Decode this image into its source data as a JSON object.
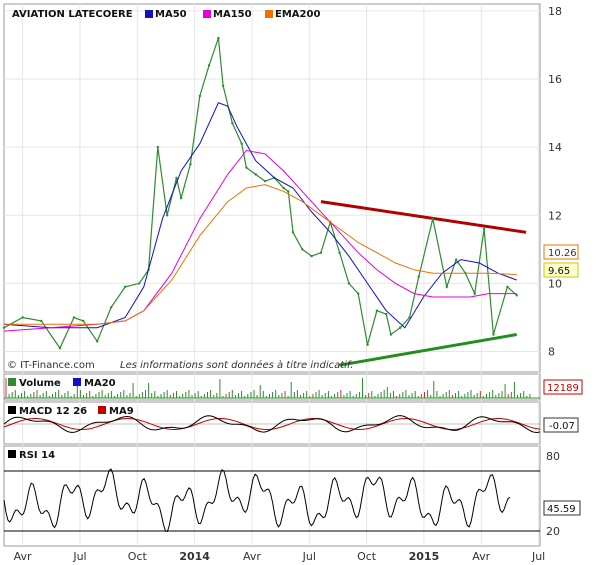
{
  "chart_data": {
    "type": "line",
    "title": "AVIATION LATECOERE",
    "legend": [
      {
        "name": "MA50",
        "color": "#1010c8"
      },
      {
        "name": "MA150",
        "color": "#e000e0"
      },
      {
        "name": "EMA200",
        "color": "#f07000"
      }
    ],
    "x_tick_labels": [
      "Avr",
      "Jul",
      "Oct",
      "2014",
      "Avr",
      "Jul",
      "Oct",
      "2015",
      "Avr",
      "Jul"
    ],
    "y_ticks": [
      "18",
      "16",
      "14",
      "12",
      "10",
      "8"
    ],
    "ylim": [
      7.4,
      18.2
    ],
    "grid": true,
    "last_price": "9.65",
    "ema200_value": "10.26",
    "price_color": "#2e8b2e",
    "series": [
      {
        "name": "Price",
        "color": "#2e8b2e",
        "x": [
          0,
          4,
          8,
          12,
          15,
          17,
          20,
          23,
          26,
          29,
          31,
          33,
          35,
          37,
          38,
          40,
          42,
          44,
          46,
          47,
          49,
          51,
          52,
          54,
          56,
          58,
          60,
          61,
          62,
          64,
          66,
          68,
          70,
          72,
          74,
          76,
          78,
          80,
          82,
          83,
          85,
          87,
          89,
          92,
          95,
          97,
          99,
          101,
          103,
          105,
          108,
          110
        ],
        "values": [
          8.7,
          9.0,
          8.9,
          8.1,
          9.0,
          8.9,
          8.3,
          9.3,
          9.9,
          10.0,
          10.4,
          14.0,
          12.0,
          13.1,
          12.5,
          13.5,
          15.5,
          16.4,
          17.2,
          15.8,
          14.7,
          14.1,
          13.4,
          13.2,
          13.0,
          13.1,
          12.8,
          12.7,
          11.5,
          11.0,
          10.8,
          10.9,
          11.8,
          10.9,
          10.0,
          9.7,
          8.2,
          9.2,
          9.1,
          8.5,
          8.7,
          9.0,
          10.2,
          11.9,
          9.9,
          10.7,
          10.3,
          9.7,
          11.6,
          8.5,
          9.9,
          9.65
        ]
      },
      {
        "name": "MA50",
        "color": "#1010c8",
        "x": [
          0,
          10,
          20,
          26,
          30,
          34,
          38,
          42,
          46,
          48,
          50,
          54,
          58,
          62,
          66,
          70,
          74,
          78,
          82,
          86,
          90,
          94,
          98,
          102,
          106,
          110
        ],
        "values": [
          8.8,
          8.7,
          8.7,
          9.0,
          9.9,
          11.9,
          13.3,
          14.1,
          15.3,
          15.2,
          14.6,
          13.6,
          13.1,
          12.8,
          12.1,
          11.5,
          10.8,
          10.0,
          9.2,
          8.7,
          9.6,
          10.3,
          10.7,
          10.6,
          10.3,
          10.1
        ]
      },
      {
        "name": "MA150",
        "color": "#e000e0",
        "x": [
          0,
          10,
          20,
          26,
          30,
          36,
          42,
          48,
          52,
          56,
          60,
          64,
          68,
          72,
          76,
          80,
          84,
          88,
          92,
          96,
          100,
          104,
          110
        ],
        "values": [
          8.6,
          8.7,
          8.8,
          8.9,
          9.2,
          10.3,
          11.9,
          13.2,
          13.9,
          13.8,
          13.3,
          12.7,
          12.1,
          11.5,
          10.9,
          10.4,
          10.0,
          9.7,
          9.6,
          9.6,
          9.6,
          9.7,
          9.7
        ]
      },
      {
        "name": "EMA200",
        "color": "#f07000",
        "x": [
          0,
          10,
          20,
          26,
          30,
          36,
          42,
          48,
          52,
          56,
          60,
          64,
          68,
          72,
          76,
          80,
          84,
          88,
          92,
          96,
          100,
          104,
          110
        ],
        "values": [
          8.8,
          8.8,
          8.8,
          8.9,
          9.2,
          10.1,
          11.4,
          12.4,
          12.8,
          12.9,
          12.7,
          12.4,
          12.0,
          11.6,
          11.2,
          10.9,
          10.6,
          10.4,
          10.3,
          10.3,
          10.3,
          10.3,
          10.26
        ]
      }
    ],
    "trendlines": [
      {
        "name": "resistance",
        "color": "#b00000",
        "x": [
          68,
          112
        ],
        "values": [
          12.4,
          11.5
        ]
      },
      {
        "name": "support",
        "color": "#1f8f1f",
        "x": [
          72,
          110
        ],
        "values": [
          7.6,
          8.5
        ]
      }
    ],
    "panels": {
      "volume": {
        "legend": [
          "Volume",
          "MA20"
        ],
        "legend_colors": [
          "#2e8b2e",
          "#1010c8"
        ],
        "value": "12189",
        "value_color": "#c00000"
      },
      "macd": {
        "legend": [
          "MACD 12 26",
          "MA9"
        ],
        "legend_colors": [
          "#000000",
          "#c00000"
        ],
        "value": "-0.07"
      },
      "rsi": {
        "legend": [
          "RSI 14"
        ],
        "y_ticks": [
          "80",
          "20"
        ],
        "value": "45.59"
      }
    },
    "credit": "© IT-Finance.com",
    "disclaimer": "Les informations sont données à titre indicatif."
  }
}
